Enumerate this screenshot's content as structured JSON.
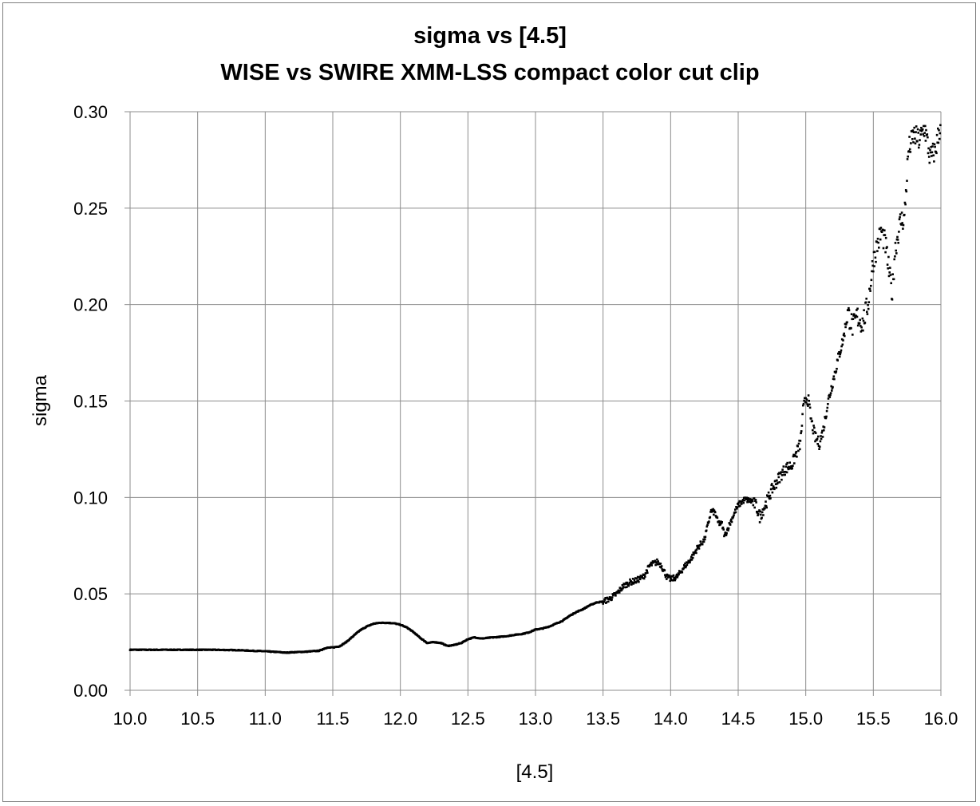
{
  "chart_data": {
    "type": "scatter",
    "title": "sigma vs [4.5]",
    "subtitle": "WISE vs SWIRE XMM-LSS compact color cut clip",
    "xlabel": "[4.5]",
    "ylabel": "sigma",
    "xlim": [
      10.0,
      16.0
    ],
    "ylim": [
      0.0,
      0.3
    ],
    "x_ticks": [
      "10.0",
      "10.5",
      "11.0",
      "11.5",
      "12.0",
      "12.5",
      "13.0",
      "13.5",
      "14.0",
      "14.5",
      "15.0",
      "15.5",
      "16.0"
    ],
    "y_ticks": [
      "0.00",
      "0.05",
      "0.10",
      "0.15",
      "0.20",
      "0.25",
      "0.30"
    ],
    "grid": true,
    "legend": "none",
    "marker_color": "#000000",
    "points": [
      [
        10.0,
        0.021
      ],
      [
        10.2,
        0.021
      ],
      [
        10.4,
        0.021
      ],
      [
        10.6,
        0.021
      ],
      [
        10.8,
        0.0208
      ],
      [
        10.9,
        0.0205
      ],
      [
        11.0,
        0.0202
      ],
      [
        11.1,
        0.0198
      ],
      [
        11.15,
        0.0195
      ],
      [
        11.2,
        0.0197
      ],
      [
        11.3,
        0.02
      ],
      [
        11.4,
        0.0205
      ],
      [
        11.45,
        0.022
      ],
      [
        11.5,
        0.0222
      ],
      [
        11.55,
        0.0228
      ],
      [
        11.6,
        0.025
      ],
      [
        11.65,
        0.028
      ],
      [
        11.7,
        0.031
      ],
      [
        11.75,
        0.033
      ],
      [
        11.8,
        0.0345
      ],
      [
        11.85,
        0.035
      ],
      [
        11.9,
        0.035
      ],
      [
        11.95,
        0.0348
      ],
      [
        12.0,
        0.034
      ],
      [
        12.05,
        0.0325
      ],
      [
        12.1,
        0.03
      ],
      [
        12.15,
        0.027
      ],
      [
        12.2,
        0.0245
      ],
      [
        12.25,
        0.025
      ],
      [
        12.3,
        0.0245
      ],
      [
        12.35,
        0.023
      ],
      [
        12.4,
        0.0235
      ],
      [
        12.45,
        0.0245
      ],
      [
        12.5,
        0.0265
      ],
      [
        12.55,
        0.0275
      ],
      [
        12.6,
        0.0268
      ],
      [
        12.65,
        0.0272
      ],
      [
        12.7,
        0.0275
      ],
      [
        12.75,
        0.0278
      ],
      [
        12.8,
        0.0282
      ],
      [
        12.85,
        0.0288
      ],
      [
        12.9,
        0.0292
      ],
      [
        12.95,
        0.03
      ],
      [
        13.0,
        0.0315
      ],
      [
        13.05,
        0.032
      ],
      [
        13.1,
        0.033
      ],
      [
        13.15,
        0.0345
      ],
      [
        13.2,
        0.036
      ],
      [
        13.25,
        0.0385
      ],
      [
        13.3,
        0.0405
      ],
      [
        13.35,
        0.042
      ],
      [
        13.4,
        0.044
      ],
      [
        13.45,
        0.0455
      ],
      [
        13.5,
        0.046
      ],
      [
        13.55,
        0.0475
      ],
      [
        13.6,
        0.05
      ],
      [
        13.65,
        0.054
      ],
      [
        13.7,
        0.056
      ],
      [
        13.75,
        0.057
      ],
      [
        13.8,
        0.059
      ],
      [
        13.85,
        0.065
      ],
      [
        13.9,
        0.0665
      ],
      [
        13.93,
        0.065
      ],
      [
        13.97,
        0.059
      ],
      [
        14.0,
        0.0575
      ],
      [
        14.05,
        0.059
      ],
      [
        14.1,
        0.064
      ],
      [
        14.15,
        0.068
      ],
      [
        14.2,
        0.074
      ],
      [
        14.25,
        0.078
      ],
      [
        14.28,
        0.087
      ],
      [
        14.3,
        0.093
      ],
      [
        14.33,
        0.092
      ],
      [
        14.35,
        0.087
      ],
      [
        14.38,
        0.086
      ],
      [
        14.4,
        0.08
      ],
      [
        14.43,
        0.085
      ],
      [
        14.46,
        0.09
      ],
      [
        14.5,
        0.096
      ],
      [
        14.55,
        0.099
      ],
      [
        14.6,
        0.098
      ],
      [
        14.63,
        0.096
      ],
      [
        14.66,
        0.09
      ],
      [
        14.7,
        0.096
      ],
      [
        14.75,
        0.104
      ],
      [
        14.8,
        0.11
      ],
      [
        14.85,
        0.115
      ],
      [
        14.9,
        0.117
      ],
      [
        14.93,
        0.123
      ],
      [
        14.96,
        0.128
      ],
      [
        14.98,
        0.145
      ],
      [
        15.0,
        0.152
      ],
      [
        15.02,
        0.15
      ],
      [
        15.04,
        0.14
      ],
      [
        15.07,
        0.131
      ],
      [
        15.1,
        0.128
      ],
      [
        15.13,
        0.135
      ],
      [
        15.16,
        0.148
      ],
      [
        15.2,
        0.16
      ],
      [
        15.24,
        0.172
      ],
      [
        15.28,
        0.183
      ],
      [
        15.31,
        0.196
      ],
      [
        15.35,
        0.188
      ],
      [
        15.38,
        0.194
      ],
      [
        15.42,
        0.19
      ],
      [
        15.46,
        0.2
      ],
      [
        15.5,
        0.223
      ],
      [
        15.53,
        0.231
      ],
      [
        15.56,
        0.238
      ],
      [
        15.59,
        0.231
      ],
      [
        15.62,
        0.215
      ],
      [
        15.64,
        0.206
      ],
      [
        15.66,
        0.228
      ],
      [
        15.7,
        0.243
      ],
      [
        15.73,
        0.245
      ],
      [
        15.76,
        0.28
      ],
      [
        15.8,
        0.288
      ],
      [
        15.84,
        0.285
      ],
      [
        15.88,
        0.292
      ],
      [
        15.92,
        0.276
      ],
      [
        15.96,
        0.28
      ],
      [
        16.0,
        0.295
      ]
    ]
  }
}
